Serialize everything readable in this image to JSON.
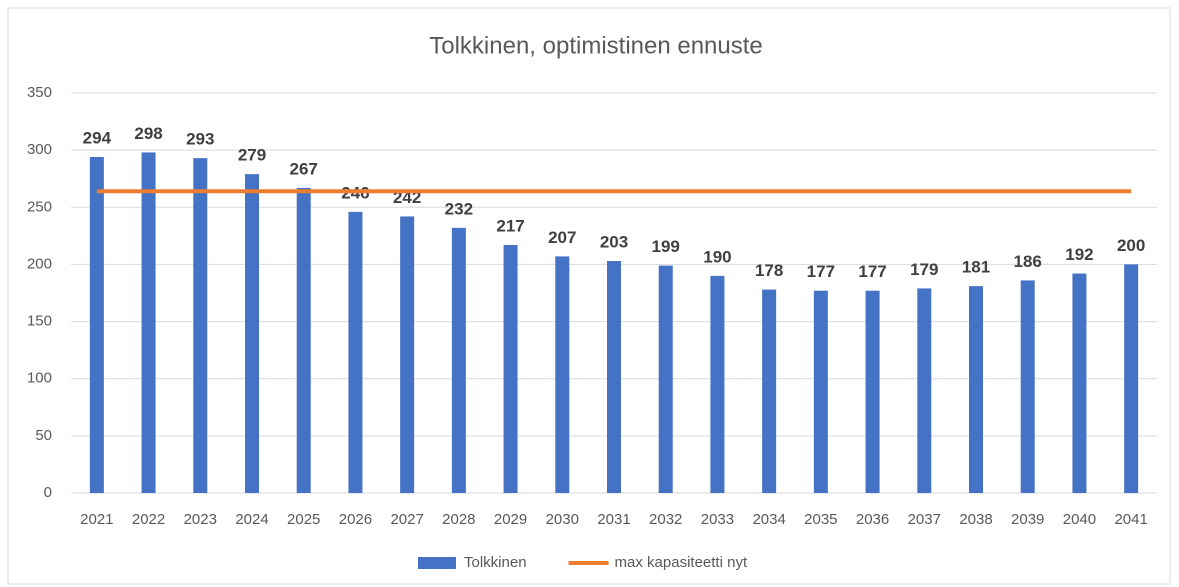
{
  "chart_data": {
    "type": "bar",
    "title": "Tolkkinen, optimistinen ennuste",
    "categories": [
      "2021",
      "2022",
      "2023",
      "2024",
      "2025",
      "2026",
      "2027",
      "2028",
      "2029",
      "2030",
      "2031",
      "2032",
      "2033",
      "2034",
      "2035",
      "2036",
      "2037",
      "2038",
      "2039",
      "2040",
      "2041"
    ],
    "series": [
      {
        "name": "Tolkkinen",
        "type": "bar",
        "color": "#4472c4",
        "values": [
          294,
          298,
          293,
          279,
          267,
          246,
          242,
          232,
          217,
          207,
          203,
          199,
          190,
          178,
          177,
          177,
          179,
          181,
          186,
          192,
          200
        ]
      },
      {
        "name": "max kapasiteetti nyt",
        "type": "line",
        "color": "#ed7d31",
        "values": [
          264,
          264,
          264,
          264,
          264,
          264,
          264,
          264,
          264,
          264,
          264,
          264,
          264,
          264,
          264,
          264,
          264,
          264,
          264,
          264,
          264
        ]
      }
    ],
    "ylim": [
      0,
      350
    ],
    "yticks": [
      0,
      50,
      100,
      150,
      200,
      250,
      300,
      350
    ],
    "grid": true,
    "legend": "bottom"
  }
}
